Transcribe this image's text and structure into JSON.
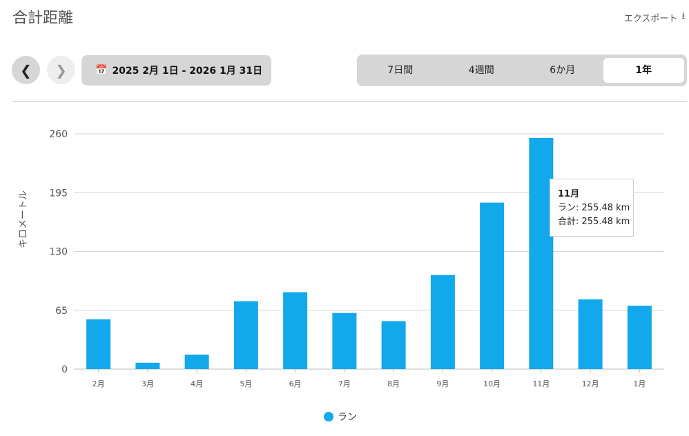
{
  "header": {
    "title": "合計距離",
    "export_label": "エクスポート"
  },
  "nav": {
    "date_range": "2025 2月 1日 - 2026 1月 31日",
    "periods": [
      "7日間",
      "4週間",
      "6か月",
      "1年"
    ],
    "active_period": "1年"
  },
  "tooltip": {
    "title": "11月",
    "line1": "ラン: 255.48 km",
    "line2": "合計: 255.48 km"
  },
  "chart_data": {
    "type": "bar",
    "ylabel": "キロメートル",
    "ylim": [
      0,
      260
    ],
    "yticks": [
      0,
      65,
      130,
      195,
      260
    ],
    "categories": [
      "2月",
      "3月",
      "4月",
      "5月",
      "6月",
      "7月",
      "8月",
      "9月",
      "10月",
      "11月",
      "12月",
      "1月"
    ],
    "series": [
      {
        "name": "ラン",
        "values": [
          55,
          7,
          16,
          75,
          85,
          62,
          53,
          104,
          184,
          255.48,
          77,
          70
        ]
      }
    ],
    "color": "#11a8ec",
    "grid": true,
    "legend": "bottom"
  }
}
